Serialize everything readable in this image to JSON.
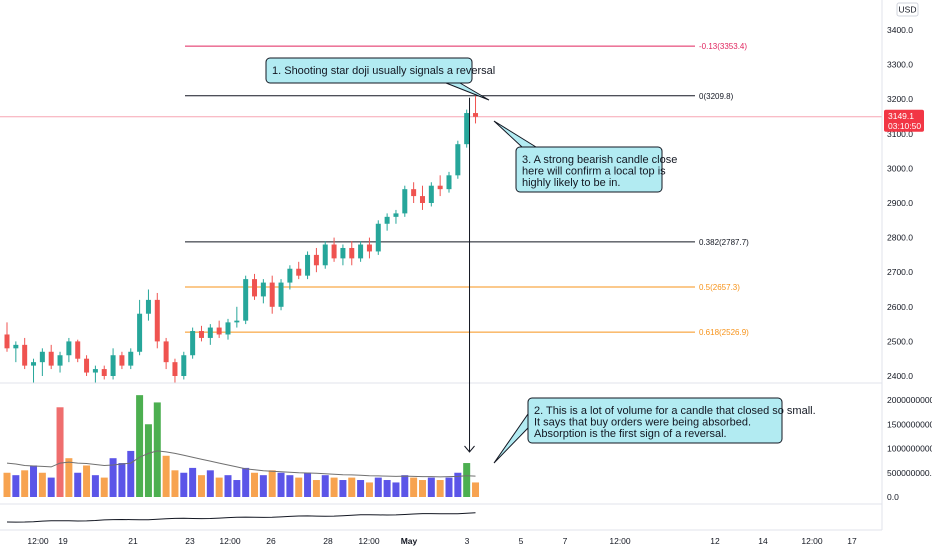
{
  "chart_data": {
    "type": "candlestick",
    "currency_badge": "USD",
    "price_axis_ticks": [
      "3400.0",
      "3300.0",
      "3200.0",
      "3100.0",
      "3000.0",
      "2900.0",
      "2800.0",
      "2700.0",
      "2600.0",
      "2500.0",
      "2400.0"
    ],
    "volume_axis_ticks": [
      "2000000000.0",
      "1500000000.0",
      "1000000000.0",
      "500000000.0",
      "0.0"
    ],
    "x_axis_ticks": [
      "12:00",
      "19",
      "21",
      "23",
      "12:00",
      "26",
      "28",
      "12:00",
      "May",
      "3",
      "5",
      "7",
      "12:00",
      "12",
      "14",
      "12:00",
      "17"
    ],
    "current_price": {
      "value": "3149.1",
      "countdown": "03:10:50",
      "color": "#f23645"
    },
    "fib_levels": [
      {
        "label": "-0.13(3353.4)",
        "price": 3353.4,
        "color": "#e0245e"
      },
      {
        "label": "0(3209.8)",
        "price": 3209.8,
        "color": "#131722"
      },
      {
        "label": "0.382(2787.7)",
        "price": 2787.7,
        "color": "#131722"
      },
      {
        "label": "0.5(2657.3)",
        "price": 2657.3,
        "color": "#f7931a"
      },
      {
        "label": "0.618(2526.9)",
        "price": 2526.9,
        "color": "#f7931a"
      }
    ],
    "candles": [
      {
        "o": 2520,
        "h": 2555,
        "l": 2470,
        "c": 2480
      },
      {
        "o": 2480,
        "h": 2500,
        "l": 2440,
        "c": 2490
      },
      {
        "o": 2490,
        "h": 2510,
        "l": 2420,
        "c": 2430
      },
      {
        "o": 2430,
        "h": 2450,
        "l": 2380,
        "c": 2440
      },
      {
        "o": 2440,
        "h": 2480,
        "l": 2400,
        "c": 2470
      },
      {
        "o": 2470,
        "h": 2490,
        "l": 2420,
        "c": 2430
      },
      {
        "o": 2430,
        "h": 2470,
        "l": 2410,
        "c": 2460
      },
      {
        "o": 2460,
        "h": 2510,
        "l": 2440,
        "c": 2500
      },
      {
        "o": 2500,
        "h": 2505,
        "l": 2440,
        "c": 2450
      },
      {
        "o": 2450,
        "h": 2460,
        "l": 2400,
        "c": 2410
      },
      {
        "o": 2410,
        "h": 2430,
        "l": 2380,
        "c": 2420
      },
      {
        "o": 2420,
        "h": 2430,
        "l": 2390,
        "c": 2400
      },
      {
        "o": 2400,
        "h": 2480,
        "l": 2390,
        "c": 2460
      },
      {
        "o": 2460,
        "h": 2470,
        "l": 2420,
        "c": 2430
      },
      {
        "o": 2430,
        "h": 2480,
        "l": 2420,
        "c": 2470
      },
      {
        "o": 2470,
        "h": 2620,
        "l": 2460,
        "c": 2580
      },
      {
        "o": 2580,
        "h": 2650,
        "l": 2560,
        "c": 2620
      },
      {
        "o": 2620,
        "h": 2640,
        "l": 2480,
        "c": 2500
      },
      {
        "o": 2500,
        "h": 2510,
        "l": 2420,
        "c": 2440
      },
      {
        "o": 2440,
        "h": 2450,
        "l": 2380,
        "c": 2400
      },
      {
        "o": 2400,
        "h": 2470,
        "l": 2390,
        "c": 2460
      },
      {
        "o": 2460,
        "h": 2540,
        "l": 2450,
        "c": 2530
      },
      {
        "o": 2530,
        "h": 2545,
        "l": 2500,
        "c": 2510
      },
      {
        "o": 2510,
        "h": 2550,
        "l": 2490,
        "c": 2540
      },
      {
        "o": 2540,
        "h": 2560,
        "l": 2510,
        "c": 2520
      },
      {
        "o": 2520,
        "h": 2565,
        "l": 2505,
        "c": 2555
      },
      {
        "o": 2555,
        "h": 2600,
        "l": 2540,
        "c": 2560
      },
      {
        "o": 2560,
        "h": 2690,
        "l": 2550,
        "c": 2680
      },
      {
        "o": 2680,
        "h": 2695,
        "l": 2620,
        "c": 2630
      },
      {
        "o": 2630,
        "h": 2680,
        "l": 2610,
        "c": 2670
      },
      {
        "o": 2670,
        "h": 2690,
        "l": 2580,
        "c": 2600
      },
      {
        "o": 2600,
        "h": 2680,
        "l": 2590,
        "c": 2670
      },
      {
        "o": 2670,
        "h": 2720,
        "l": 2650,
        "c": 2710
      },
      {
        "o": 2710,
        "h": 2730,
        "l": 2680,
        "c": 2690
      },
      {
        "o": 2690,
        "h": 2760,
        "l": 2680,
        "c": 2750
      },
      {
        "o": 2750,
        "h": 2770,
        "l": 2700,
        "c": 2720
      },
      {
        "o": 2720,
        "h": 2790,
        "l": 2710,
        "c": 2780
      },
      {
        "o": 2780,
        "h": 2800,
        "l": 2730,
        "c": 2740
      },
      {
        "o": 2740,
        "h": 2780,
        "l": 2720,
        "c": 2770
      },
      {
        "o": 2770,
        "h": 2790,
        "l": 2720,
        "c": 2740
      },
      {
        "o": 2740,
        "h": 2790,
        "l": 2730,
        "c": 2780
      },
      {
        "o": 2780,
        "h": 2800,
        "l": 2740,
        "c": 2760
      },
      {
        "o": 2760,
        "h": 2850,
        "l": 2750,
        "c": 2840
      },
      {
        "o": 2840,
        "h": 2870,
        "l": 2820,
        "c": 2860
      },
      {
        "o": 2860,
        "h": 2880,
        "l": 2840,
        "c": 2870
      },
      {
        "o": 2870,
        "h": 2950,
        "l": 2860,
        "c": 2940
      },
      {
        "o": 2940,
        "h": 2960,
        "l": 2900,
        "c": 2920
      },
      {
        "o": 2920,
        "h": 2950,
        "l": 2880,
        "c": 2900
      },
      {
        "o": 2900,
        "h": 2960,
        "l": 2890,
        "c": 2950
      },
      {
        "o": 2950,
        "h": 2980,
        "l": 2920,
        "c": 2940
      },
      {
        "o": 2940,
        "h": 2990,
        "l": 2930,
        "c": 2980
      },
      {
        "o": 2980,
        "h": 3080,
        "l": 2970,
        "c": 3070
      },
      {
        "o": 3070,
        "h": 3170,
        "l": 3060,
        "c": 3160
      },
      {
        "o": 3160,
        "h": 3209.8,
        "l": 3130,
        "c": 3149.1
      }
    ],
    "volumes": [
      {
        "v": 500000000,
        "dir": "down"
      },
      {
        "v": 450000000,
        "dir": "up"
      },
      {
        "v": 550000000,
        "dir": "down"
      },
      {
        "v": 650000000,
        "dir": "up"
      },
      {
        "v": 500000000,
        "dir": "down"
      },
      {
        "v": 400000000,
        "dir": "up"
      },
      {
        "v": 1850000000,
        "dir": "down"
      },
      {
        "v": 800000000,
        "dir": "down"
      },
      {
        "v": 500000000,
        "dir": "up"
      },
      {
        "v": 650000000,
        "dir": "down"
      },
      {
        "v": 450000000,
        "dir": "up"
      },
      {
        "v": 400000000,
        "dir": "down"
      },
      {
        "v": 800000000,
        "dir": "up"
      },
      {
        "v": 700000000,
        "dir": "up"
      },
      {
        "v": 950000000,
        "dir": "up"
      },
      {
        "v": 2100000000,
        "dir": "up"
      },
      {
        "v": 1500000000,
        "dir": "up"
      },
      {
        "v": 1950000000,
        "dir": "down"
      },
      {
        "v": 850000000,
        "dir": "down"
      },
      {
        "v": 550000000,
        "dir": "down"
      },
      {
        "v": 500000000,
        "dir": "up"
      },
      {
        "v": 600000000,
        "dir": "up"
      },
      {
        "v": 450000000,
        "dir": "down"
      },
      {
        "v": 550000000,
        "dir": "up"
      },
      {
        "v": 400000000,
        "dir": "down"
      },
      {
        "v": 450000000,
        "dir": "up"
      },
      {
        "v": 350000000,
        "dir": "up"
      },
      {
        "v": 600000000,
        "dir": "up"
      },
      {
        "v": 500000000,
        "dir": "down"
      },
      {
        "v": 450000000,
        "dir": "up"
      },
      {
        "v": 550000000,
        "dir": "down"
      },
      {
        "v": 500000000,
        "dir": "up"
      },
      {
        "v": 450000000,
        "dir": "up"
      },
      {
        "v": 400000000,
        "dir": "down"
      },
      {
        "v": 500000000,
        "dir": "up"
      },
      {
        "v": 350000000,
        "dir": "down"
      },
      {
        "v": 450000000,
        "dir": "up"
      },
      {
        "v": 400000000,
        "dir": "down"
      },
      {
        "v": 350000000,
        "dir": "up"
      },
      {
        "v": 400000000,
        "dir": "down"
      },
      {
        "v": 350000000,
        "dir": "up"
      },
      {
        "v": 300000000,
        "dir": "down"
      },
      {
        "v": 400000000,
        "dir": "up"
      },
      {
        "v": 350000000,
        "dir": "up"
      },
      {
        "v": 300000000,
        "dir": "up"
      },
      {
        "v": 450000000,
        "dir": "up"
      },
      {
        "v": 400000000,
        "dir": "down"
      },
      {
        "v": 350000000,
        "dir": "down"
      },
      {
        "v": 400000000,
        "dir": "up"
      },
      {
        "v": 350000000,
        "dir": "down"
      },
      {
        "v": 400000000,
        "dir": "up"
      },
      {
        "v": 500000000,
        "dir": "up"
      },
      {
        "v": 700000000,
        "dir": "up"
      },
      {
        "v": 300000000,
        "dir": "down"
      }
    ],
    "volume_ma": [
      700000000,
      680000000,
      650000000,
      640000000,
      630000000,
      620000000,
      700000000,
      720000000,
      700000000,
      690000000,
      670000000,
      650000000,
      660000000,
      680000000,
      700000000,
      820000000,
      900000000,
      950000000,
      930000000,
      900000000,
      860000000,
      820000000,
      780000000,
      740000000,
      700000000,
      660000000,
      620000000,
      580000000,
      560000000,
      540000000,
      530000000,
      520000000,
      510000000,
      500000000,
      495000000,
      490000000,
      480000000,
      470000000,
      460000000,
      455000000,
      450000000,
      440000000,
      435000000,
      430000000,
      425000000,
      430000000,
      425000000,
      420000000,
      420000000,
      415000000,
      420000000,
      425000000,
      440000000,
      430000000
    ],
    "highlighted_volume_colors": {
      "up": "#5b55e8",
      "down": "#f7a350",
      "highlight": "#4caf50",
      "spike": "#ef6e6e"
    },
    "annotations": [
      {
        "id": "note-1",
        "lines": [
          "1. Shooting star doji usually signals a reversal"
        ]
      },
      {
        "id": "note-2",
        "lines": [
          "2. This is a lot of volume for a candle that closed so small.",
          "It says that buy orders were being absorbed.",
          "Absorption is the first sign of a reversal."
        ]
      },
      {
        "id": "note-3",
        "lines": [
          "3. A strong bearish candle close",
          "here will confirm a local top is",
          "highly likely to be in."
        ]
      }
    ],
    "colors": {
      "up": "#26a69a",
      "down": "#ef5350",
      "note_fill": "#b2ebf2",
      "note_stroke": "#131722"
    }
  }
}
